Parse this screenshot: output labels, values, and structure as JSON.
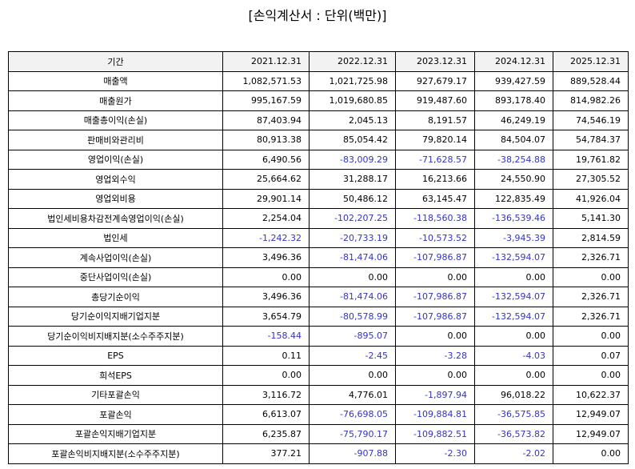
{
  "header": {
    "title": "[손익계산서 : 단위(백만)]"
  },
  "table": {
    "columns": [
      "기간",
      "2021.12.31",
      "2022.12.31",
      "2023.12.31",
      "2024.12.31",
      "2025.12.31"
    ],
    "rows": [
      [
        "매출액",
        "1,082,571.53",
        "1,021,725.98",
        "927,679.17",
        "939,427.59",
        "889,528.44"
      ],
      [
        "매출원가",
        "995,167.59",
        "1,019,680.85",
        "919,487.60",
        "893,178.40",
        "814,982.26"
      ],
      [
        "매출총이익(손실)",
        "87,403.94",
        "2,045.13",
        "8,191.57",
        "46,249.19",
        "74,546.19"
      ],
      [
        "판매비와관리비",
        "80,913.38",
        "85,054.42",
        "79,820.14",
        "84,504.07",
        "54,784.37"
      ],
      [
        "영업이익(손실)",
        "6,490.56",
        "-83,009.29",
        "-71,628.57",
        "-38,254.88",
        "19,761.82"
      ],
      [
        "영업외수익",
        "25,664.62",
        "31,288.17",
        "16,213.66",
        "24,550.90",
        "27,305.52"
      ],
      [
        "영업외비용",
        "29,901.14",
        "50,486.12",
        "63,145.47",
        "122,835.49",
        "41,926.04"
      ],
      [
        "법인세비용차감전계속영업이익(손실)",
        "2,254.04",
        "-102,207.25",
        "-118,560.38",
        "-136,539.46",
        "5,141.30"
      ],
      [
        "법인세",
        "-1,242.32",
        "-20,733.19",
        "-10,573.52",
        "-3,945.39",
        "2,814.59"
      ],
      [
        "계속사업이익(손실)",
        "3,496.36",
        "-81,474.06",
        "-107,986.87",
        "-132,594.07",
        "2,326.71"
      ],
      [
        "중단사업이익(손실)",
        "0.00",
        "0.00",
        "0.00",
        "0.00",
        "0.00"
      ],
      [
        "총당기순이익",
        "3,496.36",
        "-81,474.06",
        "-107,986.87",
        "-132,594.07",
        "2,326.71"
      ],
      [
        "당기순이익지배기업지분",
        "3,654.79",
        "-80,578.99",
        "-107,986.87",
        "-132,594.07",
        "2,326.71"
      ],
      [
        "당기순이익비지배지분(소수주주지분)",
        "-158.44",
        "-895.07",
        "0.00",
        "0.00",
        "0.00"
      ],
      [
        "EPS",
        "0.11",
        "-2.45",
        "-3.28",
        "-4.03",
        "0.07"
      ],
      [
        "희석EPS",
        "0.00",
        "0.00",
        "0.00",
        "0.00",
        "0.00"
      ],
      [
        "기타포괄손익",
        "3,116.72",
        "4,776.01",
        "-1,897.94",
        "96,018.22",
        "10,622.37"
      ],
      [
        "포괄손익",
        "6,613.07",
        "-76,698.05",
        "-109,884.81",
        "-36,575.85",
        "12,949.07"
      ],
      [
        "포괄손익지배기업지분",
        "6,235.87",
        "-75,790.17",
        "-109,882.51",
        "-36,573.82",
        "12,949.07"
      ],
      [
        "포괄손익비지배지분(소수주주지분)",
        "377.21",
        "-907.88",
        "-2.30",
        "-2.02",
        "0.00"
      ]
    ]
  }
}
